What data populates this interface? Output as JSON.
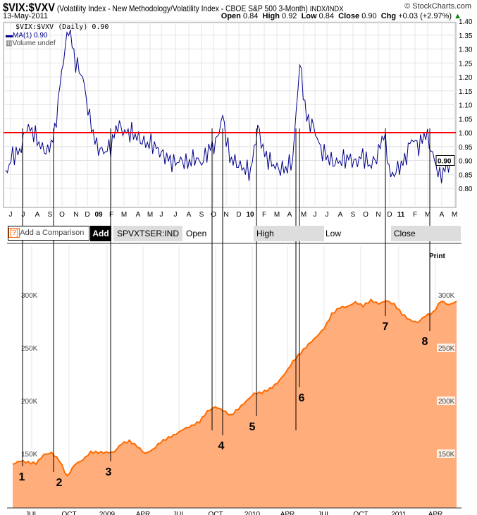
{
  "header": {
    "symbol": "$VIX:$VXV",
    "description": "(Volatility Index - New Methodology/Volatility Index - CBOE S&P 500 3-Month)",
    "exchange": "INDX/INDX",
    "source": "© StockCharts.com",
    "date": "13-May-2011",
    "open_label": "Open",
    "open": "0.84",
    "high_label": "High",
    "high": "0.92",
    "low_label": "Low",
    "low": "0.84",
    "close_label": "Close",
    "close": "0.90",
    "chg_label": "Chg",
    "chg": "+0.03 (+2.97%)"
  },
  "legend": {
    "series": "$VIX:$VXV (Daily) 0.90",
    "ma": "MA(1) 0.90",
    "volume": "Volume undef"
  },
  "toolbar": {
    "help": "[?]",
    "comparison_placeholder": "Add a Comparison",
    "add": "Add",
    "symbol": "SPVXTSER:IND",
    "open": "Open",
    "high": "High",
    "low": "Low",
    "close": "Close",
    "print": "Print"
  },
  "colors": {
    "vix_line": "#00008b",
    "ref_line": "#ff0000",
    "area_fill": "#ffad7a",
    "area_line": "#ff6a00"
  },
  "chart_data": [
    {
      "type": "line",
      "title": "$VIX:$VXV (Daily)",
      "ylim": [
        0.78,
        1.42
      ],
      "yticks": [
        "1.40",
        "1.35",
        "1.30",
        "1.25",
        "1.20",
        "1.15",
        "1.10",
        "1.05",
        "1.00",
        "0.95",
        "0.90",
        "0.85",
        "0.80"
      ],
      "xticks": [
        "J",
        "J",
        "A",
        "S",
        "O",
        "N",
        "D",
        "09",
        "F",
        "M",
        "A",
        "M",
        "J",
        "J",
        "A",
        "S",
        "O",
        "N",
        "D",
        "10",
        "F",
        "M",
        "A",
        "M",
        "J",
        "J",
        "A",
        "S",
        "O",
        "N",
        "D",
        "11",
        "F",
        "M",
        "A",
        "M"
      ],
      "reference_line": 1.0,
      "last_value_label": "0.90",
      "values": [
        0.85,
        0.92,
        0.93,
        1.02,
        1.0,
        0.95,
        0.93,
        1.0,
        1.22,
        1.38,
        1.25,
        1.2,
        1.05,
        0.95,
        0.93,
        0.95,
        1.03,
        1.0,
        1.0,
        0.98,
        0.96,
        0.96,
        0.93,
        0.91,
        0.89,
        0.9,
        0.89,
        0.91,
        0.89,
        0.94,
        0.96,
        1.06,
        0.91,
        0.89,
        0.87,
        0.86,
        1.02,
        0.92,
        0.89,
        0.87,
        0.87,
        0.9,
        1.25,
        1.05,
        1.02,
        0.94,
        0.91,
        0.89,
        0.9,
        0.91,
        0.89,
        0.92,
        0.88,
        0.91,
        1.0,
        0.84,
        0.87,
        0.9,
        0.98,
        0.95,
        1.0,
        0.92,
        0.84,
        0.88,
        0.9
      ]
    },
    {
      "type": "area",
      "title": "SPVXTSER:IND",
      "ylim": [
        100,
        350
      ],
      "yticks": [
        {
          "label": "300K",
          "v": 300
        },
        {
          "label": "250K",
          "v": 250
        },
        {
          "label": "200K",
          "v": 200
        },
        {
          "label": "150K",
          "v": 150
        }
      ],
      "xticks": [
        "JUL",
        "OCT",
        "2009",
        "APR",
        "JUL",
        "OCT",
        "2010",
        "APR",
        "JUL",
        "OCT",
        "2011",
        "APR"
      ],
      "values": [
        140,
        145,
        143,
        140,
        147,
        150,
        145,
        130,
        140,
        142,
        150,
        152,
        153,
        152,
        158,
        160,
        157,
        152,
        155,
        160,
        163,
        168,
        175,
        178,
        180,
        188,
        193,
        192,
        188,
        193,
        198,
        205,
        208,
        213,
        218,
        225,
        235,
        245,
        255,
        262,
        268,
        280,
        287,
        290,
        295,
        290,
        293,
        290,
        295,
        293,
        283,
        275,
        272,
        280,
        285,
        296,
        290,
        292
      ],
      "annotations": [
        "1",
        "2",
        "3",
        "4",
        "5",
        "6",
        "7",
        "8"
      ]
    }
  ]
}
